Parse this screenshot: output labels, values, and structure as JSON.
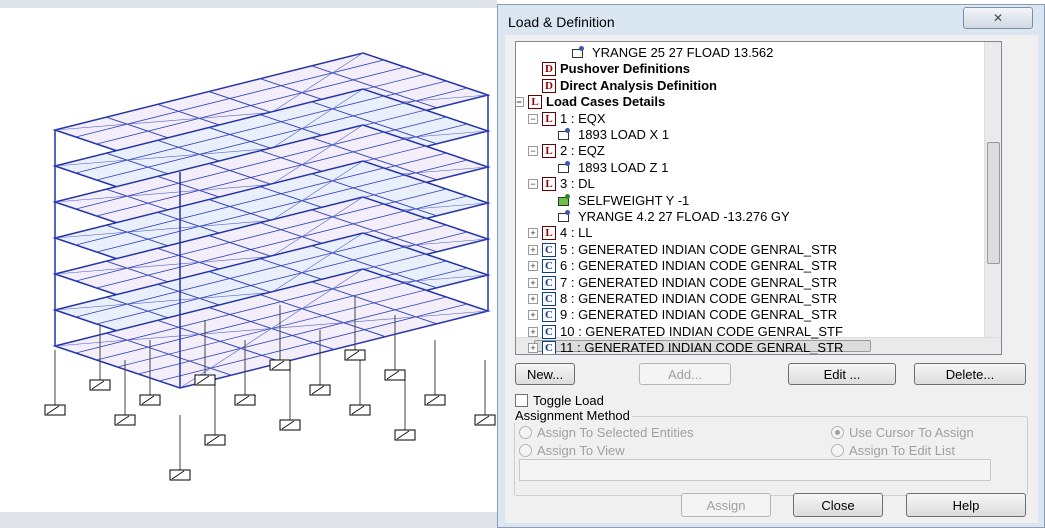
{
  "window": {
    "title": "Load & Definition",
    "close_glyph": "✕"
  },
  "tree": {
    "items": [
      {
        "kind": "load",
        "level": 3,
        "text": "YRANGE 25 27 FLOAD 13.562"
      },
      {
        "kind": "node",
        "icon": "D",
        "level": 1,
        "bold": true,
        "text": "Pushover Definitions"
      },
      {
        "kind": "node",
        "icon": "D",
        "level": 1,
        "bold": true,
        "text": "Direct Analysis Definition"
      },
      {
        "kind": "node",
        "icon": "L",
        "level": 0,
        "bold": true,
        "expanded": true,
        "text": "Load Cases Details"
      },
      {
        "kind": "node",
        "icon": "L",
        "level": 1,
        "expanded": true,
        "text": "1 : EQX"
      },
      {
        "kind": "load",
        "level": 2,
        "text": "1893 LOAD X 1"
      },
      {
        "kind": "node",
        "icon": "L",
        "level": 1,
        "expanded": true,
        "text": "2 : EQZ"
      },
      {
        "kind": "load",
        "level": 2,
        "text": "1893 LOAD Z 1"
      },
      {
        "kind": "node",
        "icon": "L",
        "level": 1,
        "expanded": true,
        "text": "3 : DL"
      },
      {
        "kind": "selfweight",
        "level": 2,
        "text": "SELFWEIGHT Y -1"
      },
      {
        "kind": "load",
        "level": 2,
        "text": "YRANGE 4.2 27 FLOAD -13.276 GY"
      },
      {
        "kind": "node",
        "icon": "L",
        "level": 1,
        "expanded": false,
        "text": "4 : LL"
      },
      {
        "kind": "node",
        "icon": "C",
        "level": 1,
        "expanded": false,
        "text": "5 : GENERATED INDIAN CODE GENRAL_STR"
      },
      {
        "kind": "node",
        "icon": "C",
        "level": 1,
        "expanded": false,
        "text": "6 : GENERATED INDIAN CODE GENRAL_STR"
      },
      {
        "kind": "node",
        "icon": "C",
        "level": 1,
        "expanded": false,
        "text": "7 : GENERATED INDIAN CODE GENRAL_STR"
      },
      {
        "kind": "node",
        "icon": "C",
        "level": 1,
        "expanded": false,
        "text": "8 : GENERATED INDIAN CODE GENRAL_STR"
      },
      {
        "kind": "node",
        "icon": "C",
        "level": 1,
        "expanded": false,
        "text": "9 : GENERATED INDIAN CODE GENRAL_STR"
      },
      {
        "kind": "node",
        "icon": "C",
        "level": 1,
        "expanded": false,
        "text": "10 : GENERATED INDIAN CODE GENRAL_STF"
      },
      {
        "kind": "node",
        "icon": "C",
        "level": 1,
        "expanded": false,
        "text": "11 : GENERATED INDIAN CODE GENRAL_STR"
      }
    ]
  },
  "buttons": [
    {
      "label": "New...",
      "enabled": true
    },
    {
      "label": "Add...",
      "enabled": false
    },
    {
      "label": "Edit ...",
      "enabled": true
    },
    {
      "label": "Delete...",
      "enabled": true
    }
  ],
  "toggle": {
    "label": "Toggle Load",
    "checked": false
  },
  "group": {
    "title": "Assignment Method",
    "options": [
      {
        "label": "Assign To Selected Entities",
        "checked": false
      },
      {
        "label": "Use Cursor To Assign",
        "checked": true
      },
      {
        "label": "Assign To View",
        "checked": false
      },
      {
        "label": "Assign To Edit List",
        "checked": false
      }
    ]
  },
  "footer_buttons": [
    {
      "label": "Assign",
      "enabled": false
    },
    {
      "label": "Close",
      "enabled": true
    },
    {
      "label": "Help",
      "enabled": true
    }
  ]
}
